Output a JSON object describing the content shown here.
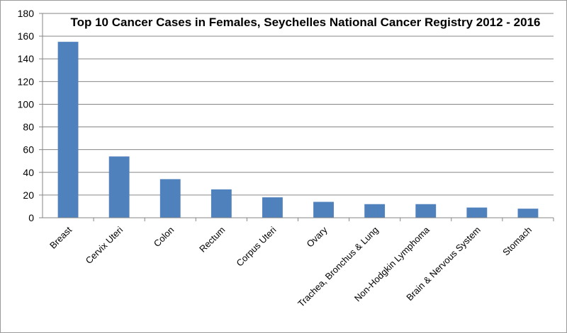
{
  "chart_data": {
    "type": "bar",
    "title": "Top 10 Cancer Cases in Females, Seychelles National Cancer Registry 2012 - 2016",
    "xlabel": "",
    "ylabel": "",
    "ylim": [
      0,
      180
    ],
    "yticks": [
      0,
      20,
      40,
      60,
      80,
      100,
      120,
      140,
      160,
      180
    ],
    "grid": true,
    "legend": "none",
    "bar_color": "#4f81bd",
    "categories": [
      "Breast",
      "Cervix Uteri",
      "Colon",
      "Rectum",
      "Corpus Uteri",
      "Ovary",
      "Trachea, Bronchus & Lung",
      "Non-Hodgkin Lymphoma",
      "Brain & Nervous System",
      "Stomach"
    ],
    "values": [
      155,
      54,
      34,
      25,
      18,
      14,
      12,
      12,
      9,
      8
    ]
  }
}
